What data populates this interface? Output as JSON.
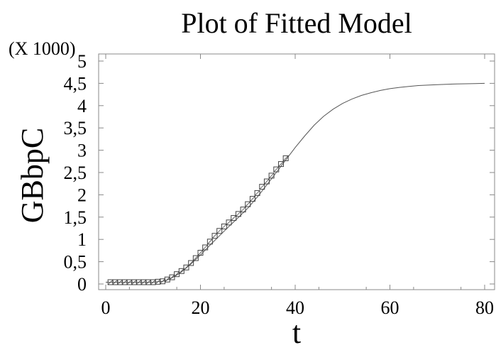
{
  "chart_data": {
    "type": "scatter",
    "title": "Plot of Fitted Model",
    "xlabel": "t",
    "ylabel": "GBbpC",
    "y_multiplier_label": "(X 1000)",
    "xlim": [
      0,
      80
    ],
    "ylim": [
      0,
      5
    ],
    "x_ticks": [
      0,
      20,
      40,
      60,
      80
    ],
    "x_tick_labels": [
      "0",
      "20",
      "40",
      "60",
      "80"
    ],
    "y_ticks": [
      0,
      0.5,
      1,
      1.5,
      2,
      2.5,
      3,
      3.5,
      4,
      4.5,
      5
    ],
    "y_tick_labels": [
      "0",
      "0,5",
      "1",
      "1,5",
      "2",
      "2,5",
      "3",
      "3,5",
      "4",
      "4,5",
      "5"
    ],
    "grid": false,
    "series": [
      {
        "kind": "points",
        "marker": "square",
        "x": [
          1,
          2,
          3,
          4,
          5,
          6,
          7,
          8,
          9,
          10,
          11,
          12,
          13,
          14,
          15,
          16,
          17,
          18,
          19,
          20,
          21,
          22,
          23,
          24,
          25,
          26,
          27,
          28,
          29,
          30,
          31,
          32,
          33,
          34,
          35,
          36,
          37,
          38
        ],
        "y": [
          0.04,
          0.04,
          0.04,
          0.04,
          0.04,
          0.04,
          0.04,
          0.04,
          0.04,
          0.04,
          0.05,
          0.06,
          0.1,
          0.15,
          0.22,
          0.29,
          0.37,
          0.47,
          0.58,
          0.7,
          0.82,
          0.95,
          1.08,
          1.19,
          1.29,
          1.38,
          1.48,
          1.57,
          1.67,
          1.79,
          1.91,
          2.04,
          2.18,
          2.3,
          2.43,
          2.57,
          2.69,
          2.82
        ]
      },
      {
        "kind": "fitted-curve",
        "x": [
          0,
          2,
          4,
          6,
          8,
          10,
          11,
          12,
          13,
          14,
          15,
          16,
          18,
          20,
          22,
          24,
          26,
          28,
          30,
          32,
          34,
          36,
          38,
          40,
          42,
          44,
          46,
          48,
          50,
          52,
          54,
          56,
          58,
          60,
          62,
          64,
          66,
          68,
          70,
          72,
          74,
          76,
          78,
          80
        ],
        "y": [
          0.04,
          0.04,
          0.04,
          0.04,
          0.04,
          0.04,
          0.05,
          0.06,
          0.09,
          0.14,
          0.2,
          0.27,
          0.45,
          0.65,
          0.87,
          1.08,
          1.29,
          1.49,
          1.7,
          1.95,
          2.22,
          2.5,
          2.78,
          3.06,
          3.32,
          3.56,
          3.76,
          3.92,
          4.05,
          4.15,
          4.23,
          4.29,
          4.34,
          4.38,
          4.41,
          4.43,
          4.45,
          4.46,
          4.47,
          4.48,
          4.485,
          4.49,
          4.495,
          4.5
        ]
      }
    ]
  }
}
